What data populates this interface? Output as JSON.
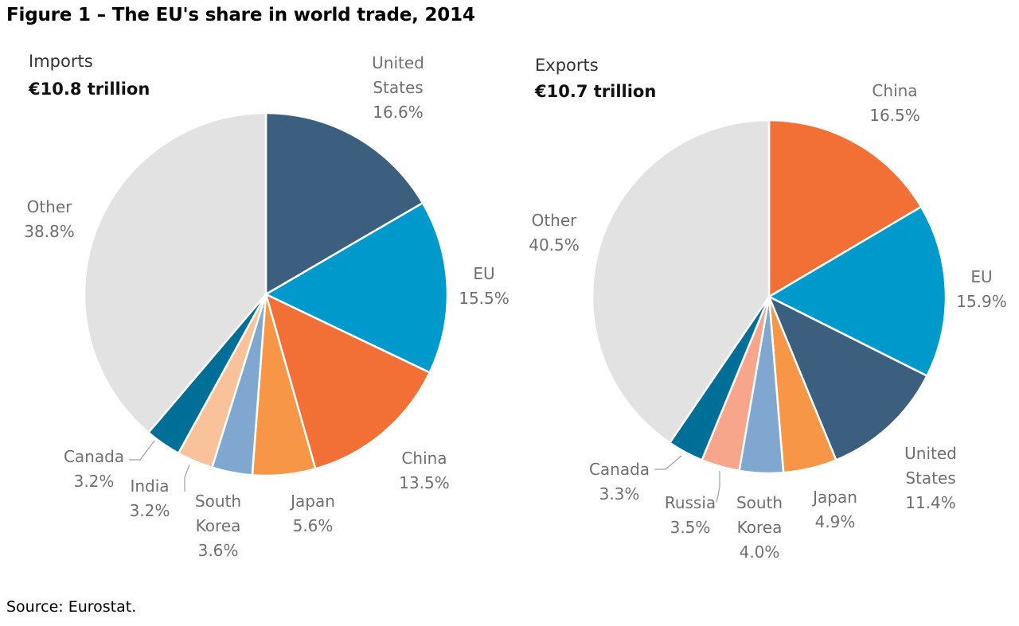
{
  "figure_title": "Figure 1 – The EU's share in world trade, 2014",
  "source": "Source: Eurostat.",
  "colors": {
    "United States": "#3c5f80",
    "EU": "#0099cc",
    "China": "#f26f35",
    "Japan": "#f79646",
    "South Korea": "#7fa7cf",
    "India": "#f9c29a",
    "Russia": "#f7a68c",
    "Canada": "#006f98",
    "Other": "#e2e2e2"
  },
  "chart_data": [
    {
      "type": "pie",
      "heading": "Imports",
      "total": "€10.8 trillion",
      "slices": [
        {
          "id": "united-states",
          "key": "United States",
          "lines": [
            "United",
            "States"
          ],
          "value": 16.6,
          "value_label": "16.6%"
        },
        {
          "id": "eu",
          "key": "EU",
          "lines": [
            "EU"
          ],
          "value": 15.5,
          "value_label": "15.5%"
        },
        {
          "id": "china",
          "key": "China",
          "lines": [
            "China"
          ],
          "value": 13.5,
          "value_label": "13.5%"
        },
        {
          "id": "japan",
          "key": "Japan",
          "lines": [
            "Japan"
          ],
          "value": 5.6,
          "value_label": "5.6%"
        },
        {
          "id": "south-korea",
          "key": "South Korea",
          "lines": [
            "South",
            "Korea"
          ],
          "value": 3.6,
          "value_label": "3.6%"
        },
        {
          "id": "india",
          "key": "India",
          "lines": [
            "India"
          ],
          "value": 3.2,
          "value_label": "3.2%"
        },
        {
          "id": "canada",
          "key": "Canada",
          "lines": [
            "Canada"
          ],
          "value": 3.2,
          "value_label": "3.2%"
        },
        {
          "id": "other",
          "key": "Other",
          "lines": [
            "Other"
          ],
          "value": 38.8,
          "value_label": "38.8%"
        }
      ]
    },
    {
      "type": "pie",
      "heading": "Exports",
      "total": "€10.7 trillion",
      "slices": [
        {
          "id": "china",
          "key": "China",
          "lines": [
            "China"
          ],
          "value": 16.5,
          "value_label": "16.5%"
        },
        {
          "id": "eu",
          "key": "EU",
          "lines": [
            "EU"
          ],
          "value": 15.9,
          "value_label": "15.9%"
        },
        {
          "id": "united-states",
          "key": "United States",
          "lines": [
            "United",
            "States"
          ],
          "value": 11.4,
          "value_label": "11.4%"
        },
        {
          "id": "japan",
          "key": "Japan",
          "lines": [
            "Japan"
          ],
          "value": 4.9,
          "value_label": "4.9%"
        },
        {
          "id": "south-korea",
          "key": "South Korea",
          "lines": [
            "South",
            "Korea"
          ],
          "value": 4.0,
          "value_label": "4.0%"
        },
        {
          "id": "russia",
          "key": "Russia",
          "lines": [
            "Russia"
          ],
          "value": 3.5,
          "value_label": "3.5%"
        },
        {
          "id": "canada",
          "key": "Canada",
          "lines": [
            "Canada"
          ],
          "value": 3.3,
          "value_label": "3.3%"
        },
        {
          "id": "other",
          "key": "Other",
          "lines": [
            "Other"
          ],
          "value": 40.5,
          "value_label": "40.5%"
        }
      ]
    }
  ]
}
